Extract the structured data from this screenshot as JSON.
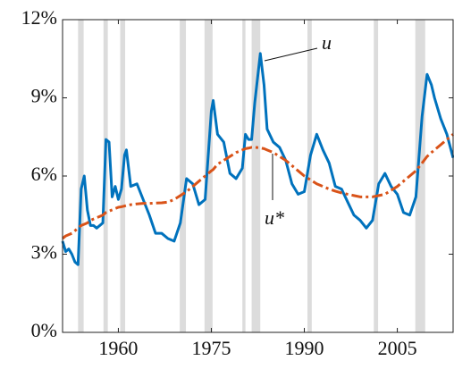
{
  "chart_data": {
    "type": "line",
    "x": [
      1951,
      1951.5,
      1952,
      1952.5,
      1953,
      1953.5,
      1954,
      1954.5,
      1955,
      1955.5,
      1956,
      1956.5,
      1957,
      1957.5,
      1958,
      1958.5,
      1959,
      1959.5,
      1960,
      1960.5,
      1961,
      1961.3,
      1962,
      1963,
      1964,
      1965,
      1966,
      1967,
      1968,
      1969,
      1970,
      1971,
      1972,
      1973,
      1974,
      1975,
      1975.3,
      1976,
      1977,
      1978,
      1979,
      1980,
      1980.5,
      1981,
      1981.5,
      1982,
      1982.9,
      1983.5,
      1984,
      1985,
      1986,
      1987,
      1988,
      1989,
      1990,
      1991,
      1992,
      1993,
      1994,
      1995,
      1996,
      1997,
      1998,
      1999,
      2000,
      2001,
      2002,
      2003,
      2004,
      2005,
      2006,
      2007,
      2008,
      2009,
      2009.8,
      2010.5,
      2011,
      2012,
      2013,
      2014
    ],
    "series": [
      {
        "name": "u",
        "color": "#0072bd",
        "dash": "none",
        "values": [
          3.5,
          3.1,
          3.2,
          3.0,
          2.7,
          2.6,
          5.5,
          6.0,
          4.7,
          4.1,
          4.1,
          4.0,
          4.1,
          4.2,
          7.4,
          7.3,
          5.2,
          5.6,
          5.1,
          5.5,
          6.8,
          7.0,
          5.6,
          5.7,
          5.1,
          4.5,
          3.8,
          3.8,
          3.6,
          3.5,
          4.2,
          5.9,
          5.7,
          4.9,
          5.1,
          8.5,
          8.9,
          7.6,
          7.3,
          6.1,
          5.9,
          6.3,
          7.6,
          7.4,
          7.4,
          8.8,
          10.7,
          9.5,
          7.8,
          7.3,
          7.1,
          6.6,
          5.7,
          5.3,
          5.4,
          6.8,
          7.6,
          7.0,
          6.5,
          5.6,
          5.5,
          5.0,
          4.5,
          4.3,
          4.0,
          4.3,
          5.7,
          6.1,
          5.6,
          5.3,
          4.6,
          4.5,
          5.2,
          8.3,
          9.9,
          9.5,
          9.0,
          8.2,
          7.6,
          6.7
        ]
      },
      {
        "name": "u*",
        "color": "#d95319",
        "dash": "12 4 3 4",
        "values": [
          3.6,
          3.7,
          3.75,
          3.8,
          3.9,
          4.0,
          4.1,
          4.15,
          4.2,
          4.3,
          4.35,
          4.4,
          4.45,
          4.5,
          4.6,
          4.65,
          4.7,
          4.75,
          4.8,
          4.82,
          4.85,
          4.87,
          4.9,
          4.93,
          4.95,
          4.95,
          4.96,
          4.97,
          5.0,
          5.1,
          5.25,
          5.4,
          5.6,
          5.8,
          6.0,
          6.2,
          6.25,
          6.45,
          6.6,
          6.75,
          6.9,
          7.0,
          7.05,
          7.07,
          7.1,
          7.1,
          7.08,
          7.05,
          7.0,
          6.9,
          6.75,
          6.6,
          6.4,
          6.2,
          6.0,
          5.85,
          5.7,
          5.6,
          5.5,
          5.42,
          5.35,
          5.3,
          5.25,
          5.2,
          5.2,
          5.2,
          5.25,
          5.3,
          5.45,
          5.6,
          5.8,
          6.0,
          6.2,
          6.5,
          6.75,
          6.9,
          7.0,
          7.2,
          7.4,
          7.6
        ]
      }
    ],
    "recessions": [
      [
        1953.5,
        1954.4
      ],
      [
        1957.6,
        1958.3
      ],
      [
        1960.3,
        1961.1
      ],
      [
        1969.9,
        1970.9
      ],
      [
        1973.9,
        1975.2
      ],
      [
        1980.0,
        1980.5
      ],
      [
        1981.5,
        1982.9
      ],
      [
        1990.5,
        1991.2
      ],
      [
        2001.2,
        2001.9
      ],
      [
        2007.9,
        2009.5
      ]
    ],
    "xlim": [
      1951,
      2014
    ],
    "xticks": [
      1960,
      1975,
      1990,
      2005
    ],
    "ylim": [
      0,
      12
    ],
    "yticks": [
      {
        "value": 0,
        "label": "0%"
      },
      {
        "value": 3,
        "label": "3%"
      },
      {
        "value": 6,
        "label": "6%"
      },
      {
        "value": 9,
        "label": "9%"
      },
      {
        "value": 12,
        "label": "12%"
      }
    ],
    "annotations": [
      {
        "text": "u"
      },
      {
        "text": "u*"
      }
    ]
  }
}
